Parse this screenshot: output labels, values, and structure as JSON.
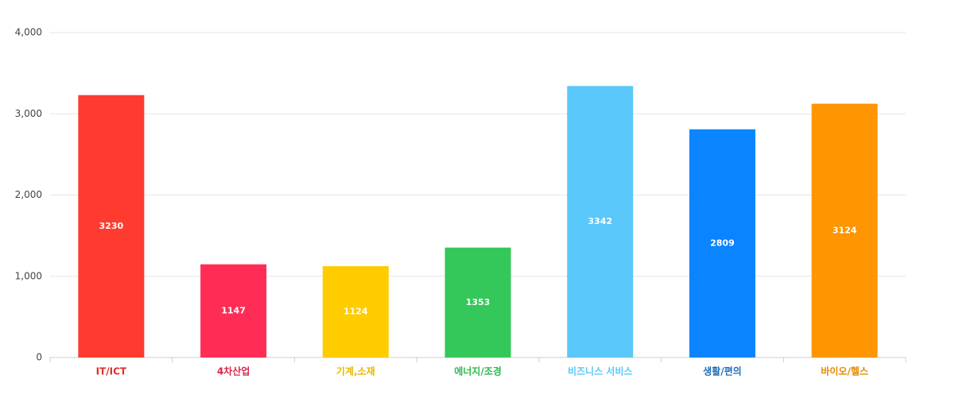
{
  "chart_data": {
    "type": "bar",
    "categories": [
      "IT/ICT",
      "4차산업",
      "기계,소재",
      "에너지/조경",
      "비즈니스 서비스",
      "생활/편의",
      "바이오/헬스"
    ],
    "values": [
      3230,
      1147,
      1124,
      1353,
      3342,
      2809,
      3124
    ],
    "colors": [
      "#ff3b30",
      "#ff2d55",
      "#ffcc00",
      "#34c759",
      "#5ac8fa",
      "#0a84ff",
      "#ff9500"
    ],
    "label_colors": [
      "#e0302a",
      "#d9234a",
      "#e6b800",
      "#2eb84f",
      "#5ac8fa",
      "#1f6fb5",
      "#e68a00"
    ],
    "ylim": [
      0,
      4000
    ],
    "yticks": [
      0,
      {
        "value": 1000,
        "label": "1,000"
      },
      {
        "value": 2000,
        "label": "2,000"
      },
      {
        "value": 3000,
        "label": "3,000"
      },
      {
        "value": 4000,
        "label": "4,000"
      }
    ],
    "grid": true
  }
}
